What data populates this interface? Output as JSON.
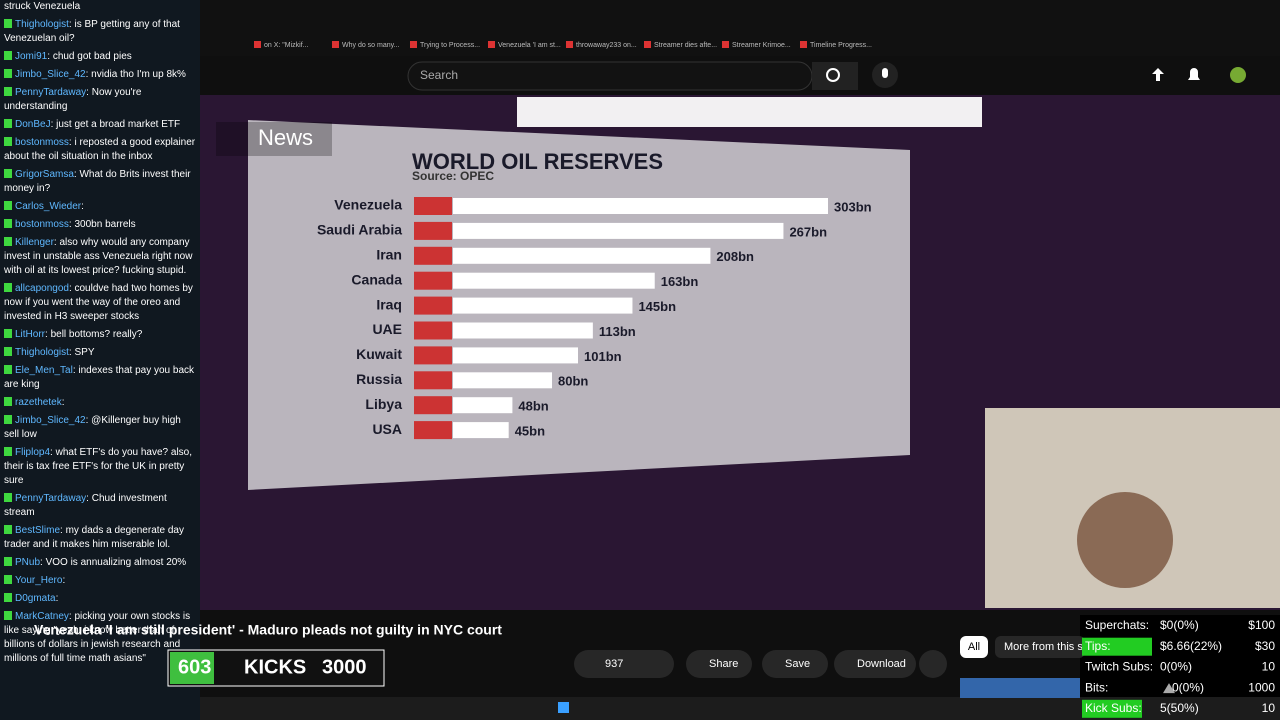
{
  "browser": {
    "tabs": [
      "on X: \"Mizkif...",
      "Why do so many...",
      "Trying to Process...",
      "Venezuela 'I am st...",
      "throwaway233 on...",
      "Streamer dies afte...",
      "Streamer Krimoe...",
      "Timeline Progress..."
    ],
    "search_placeholder": "Search"
  },
  "chat": [
    {
      "message": "struck Venezuela"
    },
    {
      "user": "Thighologist",
      "message": "is BP getting any of that Venezuelan oil?"
    },
    {
      "user": "Jomi91",
      "message": "chud got bad pies"
    },
    {
      "user": "Jimbo_Slice_42",
      "message": "nvidia tho I'm up 8k%"
    },
    {
      "user": "PennyTardaway",
      "message": "Now you're understanding"
    },
    {
      "user": "DonBeJ",
      "message": "just get a broad market ETF"
    },
    {
      "user": "bostonmoss",
      "message": "i reposted a good explainer about the oil situation in the inbox"
    },
    {
      "user": "GrigorSamsa",
      "message": "What do Brits invest their money in?"
    },
    {
      "user": "Carlos_Wieder"
    },
    {
      "user": "bostonmoss",
      "message": "300bn barrels"
    },
    {
      "user": "Killenger",
      "message": "also why would any company invest in unstable ass Venezuela right now with oil at its lowest price? fucking stupid."
    },
    {
      "user": "allcapongod",
      "message": "couldve had two homes by now if you went the way of the oreo and invested in H3 sweeper stocks"
    },
    {
      "user": "LitHorr",
      "message": "bell bottoms? really?"
    },
    {
      "user": "Thighologist",
      "message": "SPY"
    },
    {
      "user": "Ele_Men_Tal",
      "message": "indexes that pay you back are king"
    },
    {
      "user": "razethetek"
    },
    {
      "user": "Jimbo_Slice_42",
      "message": "@Killenger buy high sell low"
    },
    {
      "user": "Fliplop4",
      "message": "what ETF's do you have? also, their is tax free ETF's for the UK in pretty sure"
    },
    {
      "user": "PennyTardaway",
      "message": "Chud investment stream"
    },
    {
      "user": "BestSlime",
      "message": "my dads a degenerate day trader and it makes him miserable lol."
    },
    {
      "user": "PNub",
      "message": "VOO is annualizing almost 20%"
    },
    {
      "user": "Your_Hero"
    },
    {
      "user": "D0gmata"
    },
    {
      "user": "MarkCatney",
      "message": "picking your own stocks is like saying \"yeah, i know better than of billions of dollars in jewish research and millions of full time math asians\""
    }
  ],
  "video": {
    "channel_logo": "News",
    "chart": {
      "type": "bar",
      "title": "WORLD OIL RESERVES",
      "subtitle": "Source: OPEC",
      "categories": [
        "Venezuela",
        "Saudi Arabia",
        "Iran",
        "Canada",
        "Iraq",
        "UAE",
        "Kuwait",
        "Russia",
        "Libya",
        "USA"
      ],
      "values": [
        303,
        267,
        208,
        163,
        145,
        113,
        101,
        80,
        48,
        45
      ],
      "value_labels": [
        "303bn",
        "267bn",
        "208bn",
        "163bn",
        "145bn",
        "113bn",
        "101bn",
        "80bn",
        "48bn",
        "45bn"
      ],
      "color": "#ffffff"
    },
    "title": "Venezuela 'I am still president' - Maduro pleads not guilty in NYC court",
    "likes": "937",
    "actions": [
      "Share",
      "Save",
      "Download"
    ],
    "filters": [
      "All",
      "More from this s"
    ]
  },
  "kicks": {
    "count": "603",
    "label": "KICKS",
    "goal": "3000"
  },
  "stats": [
    {
      "label": "Superchats:",
      "value": "$0(0%)",
      "goal": "$100"
    },
    {
      "label": "Tips:",
      "value": "$6.66(22%)",
      "goal": "$30"
    },
    {
      "label": "Twitch Subs:",
      "value": "0(0%)",
      "goal": "10"
    },
    {
      "label": "Bits:",
      "value": "0(0%)",
      "goal": "1000"
    },
    {
      "label": "Kick Subs:",
      "value": "5(50%)",
      "goal": "10"
    }
  ]
}
